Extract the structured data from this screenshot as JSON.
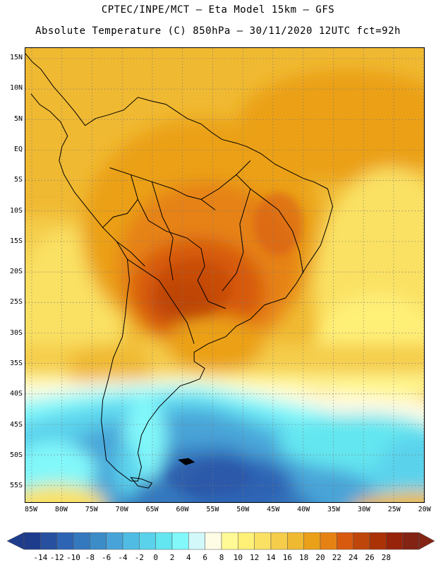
{
  "header": {
    "title_line1": "CPTEC/INPE/MCT –  Eta Model 15km – GFS",
    "title_line2": "Absolute Temperature (C) 850hPa – 30/11/2020 12UTC fct=92h"
  },
  "map": {
    "region": "South America",
    "lat_labels": [
      "15N",
      "10N",
      "5N",
      "EQ",
      "5S",
      "10S",
      "15S",
      "20S",
      "25S",
      "30S",
      "35S",
      "40S",
      "45S",
      "50S",
      "55S"
    ],
    "lon_labels": [
      "85W",
      "80W",
      "75W",
      "70W",
      "65W",
      "60W",
      "55W",
      "50W",
      "45W",
      "40W",
      "35W",
      "30W",
      "25W",
      "20W"
    ],
    "grid": "dotted",
    "colors": {
      "frame": "#000000",
      "coastline": "#000000",
      "grid": "#7a7a7a"
    }
  },
  "colorbar": {
    "labels": [
      "-14",
      "-12",
      "-10",
      "-8",
      "-6",
      "-4",
      "-2",
      "0",
      "2",
      "4",
      "6",
      "8",
      "10",
      "12",
      "14",
      "16",
      "18",
      "20",
      "22",
      "24",
      "26",
      "28"
    ],
    "colors": [
      "#1e3c8c",
      "#2850a0",
      "#2e64b4",
      "#3478be",
      "#3c8cc8",
      "#48a4d8",
      "#50bce4",
      "#5ad2ec",
      "#64e6f0",
      "#82f8fa",
      "#d2f8fa",
      "#fffce6",
      "#fffa96",
      "#fff078",
      "#fae164",
      "#f5cd4b",
      "#f0b932",
      "#eba019",
      "#e68214",
      "#d75a0f",
      "#be460a",
      "#aa3205",
      "#96230a",
      "#822314"
    ],
    "extend_low_color": "#1e3c8c",
    "extend_high_color": "#822314"
  }
}
